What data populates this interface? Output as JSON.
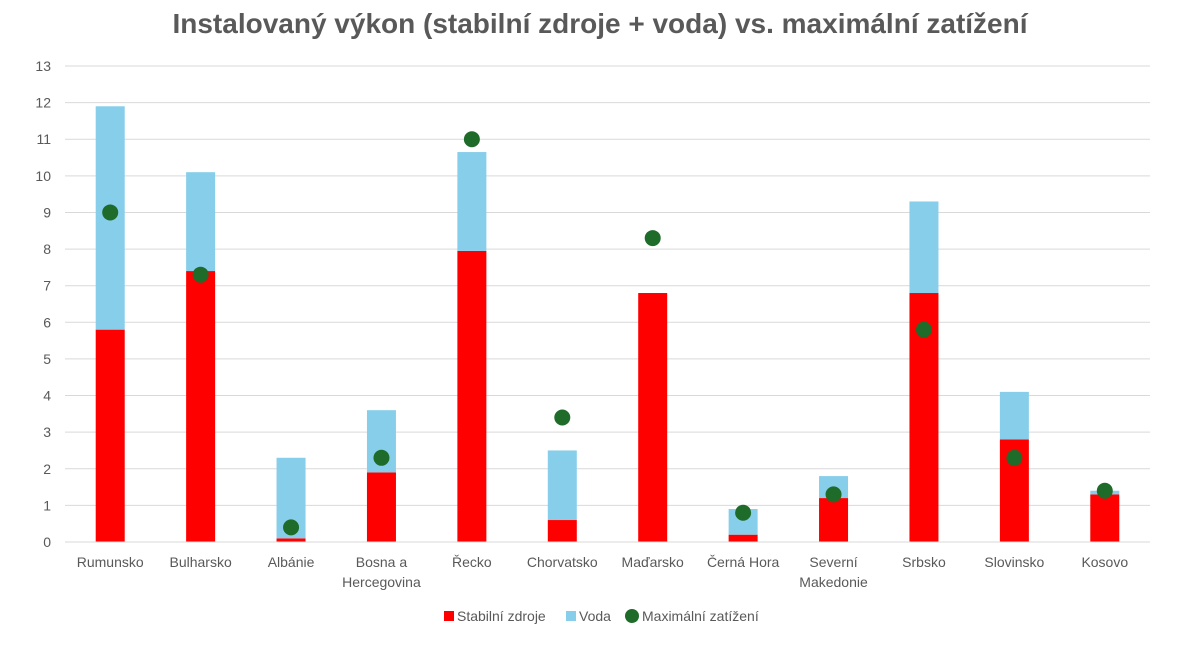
{
  "chart_data": {
    "type": "bar",
    "stacked": true,
    "title": "Instalovaný výkon (stabilní zdroje + voda) vs. maximální zatížení",
    "xlabel": "",
    "ylabel": "",
    "ylim": [
      0,
      13
    ],
    "y_ticks": [
      "0",
      "1",
      "2",
      "3",
      "4",
      "5",
      "6",
      "7",
      "8",
      "9",
      "10",
      "11",
      "12",
      "13"
    ],
    "grid": true,
    "legend_position": "bottom",
    "categories": [
      [
        "Rumunsko"
      ],
      [
        "Bulharsko"
      ],
      [
        "Albánie"
      ],
      [
        "Bosna a",
        "Hercegovina"
      ],
      [
        "Řecko"
      ],
      [
        "Chorvatsko"
      ],
      [
        "Maďarsko"
      ],
      [
        "Černá Hora"
      ],
      [
        "Severní",
        "Makedonie"
      ],
      [
        "Srbsko"
      ],
      [
        "Slovinsko"
      ],
      [
        "Kosovo"
      ]
    ],
    "series": [
      {
        "name": "Stabilní zdroje",
        "kind": "bar",
        "color": "#ff0000",
        "values": [
          5.8,
          7.4,
          0.1,
          1.9,
          7.95,
          0.6,
          6.8,
          0.2,
          1.2,
          6.8,
          2.8,
          1.3
        ]
      },
      {
        "name": "Voda",
        "kind": "bar",
        "color": "#87ceeb",
        "values": [
          6.1,
          2.7,
          2.2,
          1.7,
          2.7,
          1.9,
          0.0,
          0.7,
          0.6,
          2.5,
          1.3,
          0.1
        ]
      },
      {
        "name": "Maximální zatížení",
        "kind": "scatter",
        "color": "#1e6b2a",
        "values": [
          9.0,
          7.3,
          0.4,
          2.3,
          11.0,
          3.4,
          8.3,
          0.8,
          1.3,
          5.8,
          2.3,
          1.4
        ]
      }
    ]
  }
}
